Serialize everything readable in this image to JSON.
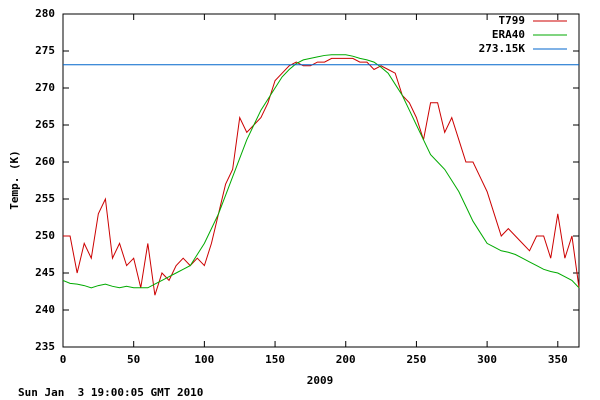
{
  "chart_data": {
    "type": "line",
    "xlabel": "2009",
    "ylabel": "Temp. (K)",
    "footer": "Sun Jan  3 19:00:05 GMT 2010",
    "xlim": [
      0,
      365
    ],
    "ylim": [
      235,
      280
    ],
    "xticks": [
      0,
      50,
      100,
      150,
      200,
      250,
      300,
      350
    ],
    "yticks": [
      235,
      240,
      245,
      250,
      255,
      260,
      265,
      270,
      275,
      280
    ],
    "grid": false,
    "legend": "top-right",
    "x": [
      0,
      5,
      10,
      15,
      20,
      25,
      30,
      35,
      40,
      45,
      50,
      55,
      60,
      65,
      70,
      75,
      80,
      85,
      90,
      95,
      100,
      105,
      110,
      115,
      120,
      125,
      130,
      135,
      140,
      145,
      150,
      155,
      160,
      165,
      170,
      175,
      180,
      185,
      190,
      195,
      200,
      205,
      210,
      215,
      220,
      225,
      230,
      235,
      240,
      245,
      250,
      255,
      260,
      265,
      270,
      275,
      280,
      285,
      290,
      295,
      300,
      305,
      310,
      315,
      320,
      325,
      330,
      335,
      340,
      345,
      350,
      355,
      360,
      365
    ],
    "series": [
      {
        "name": "T799",
        "color": "#cc0000",
        "values": [
          250,
          250,
          245,
          249,
          247,
          253,
          255,
          247,
          249,
          246,
          247,
          243,
          249,
          242,
          245,
          244,
          246,
          247,
          246,
          247,
          246,
          249,
          253,
          257,
          259,
          266,
          264,
          265,
          266,
          268,
          271,
          272,
          273,
          273.5,
          273,
          273,
          273.5,
          273.5,
          274,
          274,
          274,
          274,
          273.5,
          273.5,
          272.5,
          273,
          272.5,
          272,
          269,
          268,
          266,
          263,
          268,
          268,
          264,
          266,
          263,
          260,
          260,
          258,
          256,
          253,
          250,
          251,
          250,
          249,
          248,
          250,
          250,
          247,
          253,
          247,
          250,
          243
        ]
      },
      {
        "name": "ERA40",
        "color": "#00aa00",
        "values": [
          244,
          243.6,
          243.5,
          243.3,
          243,
          243.3,
          243.5,
          243.2,
          243,
          243.2,
          243,
          243,
          243,
          243.5,
          244,
          244.5,
          245,
          245.5,
          246,
          247.5,
          249,
          251,
          253,
          255.5,
          258,
          260.5,
          263,
          265,
          267,
          268.5,
          270,
          271.5,
          272.5,
          273.3,
          273.8,
          274,
          274.2,
          274.4,
          274.5,
          274.5,
          274.5,
          274.3,
          274,
          273.8,
          273.5,
          272.8,
          272,
          270.5,
          269,
          267,
          265,
          263,
          261,
          260,
          259,
          257.5,
          256,
          254,
          252,
          250.5,
          249,
          248.5,
          248,
          247.8,
          247.5,
          247,
          246.5,
          246,
          245.5,
          245.2,
          245,
          244.5,
          244,
          243
        ]
      },
      {
        "name": "273.15K",
        "color": "#0066cc",
        "value": 273.15
      }
    ]
  }
}
